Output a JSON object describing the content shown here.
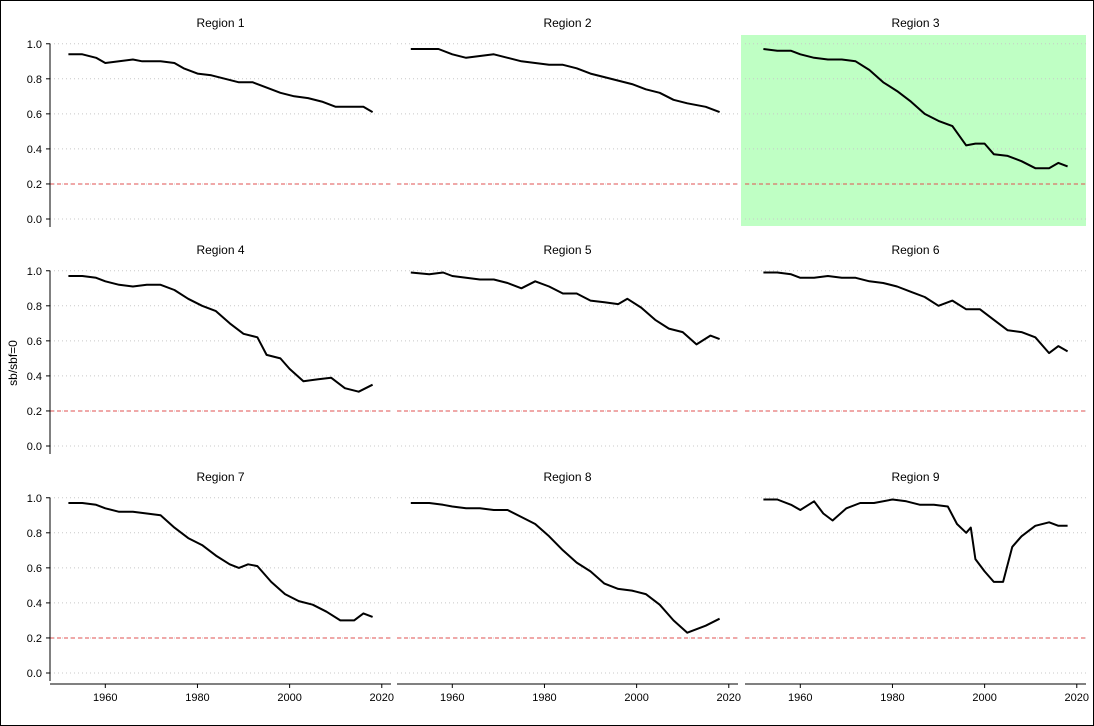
{
  "ylabel": "sb/sbf=0",
  "colors": {
    "line": "#000000",
    "reference": "#e05050",
    "gridline": "#c8c8c8",
    "highlight": "#bfffc4"
  },
  "chart_data": {
    "type": "line",
    "layout": "faceted-3x3",
    "ylabel": "sb/sbf=0",
    "xlabel": "",
    "xlim": [
      1948,
      2022
    ],
    "ylim": [
      -0.04,
      1.05
    ],
    "x_ticks": [
      1960,
      1980,
      2000,
      2020
    ],
    "y_ticks": [
      0.0,
      0.2,
      0.4,
      0.6,
      0.8,
      1.0
    ],
    "y_tick_labels": [
      "0.0",
      "0.2",
      "0.4",
      "0.6",
      "0.8",
      "1.0"
    ],
    "reference_line": {
      "y": 0.2,
      "style": "dashed"
    },
    "grid": "horizontal dotted",
    "highlighted_panel": "Region 3",
    "panels": [
      {
        "title": "Region 1",
        "x": [
          1952,
          1955,
          1958,
          1960,
          1963,
          1966,
          1968,
          1972,
          1975,
          1977,
          1980,
          1983,
          1986,
          1989,
          1992,
          1995,
          1998,
          2001,
          2004,
          2007,
          2010,
          2013,
          2016,
          2018
        ],
        "values": [
          0.94,
          0.94,
          0.92,
          0.89,
          0.9,
          0.91,
          0.9,
          0.9,
          0.89,
          0.86,
          0.83,
          0.82,
          0.8,
          0.78,
          0.78,
          0.75,
          0.72,
          0.7,
          0.69,
          0.67,
          0.64,
          0.64,
          0.64,
          0.61
        ]
      },
      {
        "title": "Region 2",
        "x": [
          1951,
          1955,
          1957,
          1960,
          1963,
          1966,
          1969,
          1972,
          1975,
          1978,
          1981,
          1984,
          1987,
          1990,
          1993,
          1996,
          1999,
          2002,
          2005,
          2008,
          2011,
          2015,
          2018
        ],
        "values": [
          0.97,
          0.97,
          0.97,
          0.94,
          0.92,
          0.93,
          0.94,
          0.92,
          0.9,
          0.89,
          0.88,
          0.88,
          0.86,
          0.83,
          0.81,
          0.79,
          0.77,
          0.74,
          0.72,
          0.68,
          0.66,
          0.64,
          0.61
        ]
      },
      {
        "title": "Region 3",
        "x": [
          1952,
          1955,
          1958,
          1960,
          1963,
          1966,
          1969,
          1972,
          1975,
          1978,
          1981,
          1984,
          1987,
          1990,
          1993,
          1996,
          1998,
          2000,
          2002,
          2005,
          2008,
          2011,
          2014,
          2016,
          2018
        ],
        "values": [
          0.97,
          0.96,
          0.96,
          0.94,
          0.92,
          0.91,
          0.91,
          0.9,
          0.85,
          0.78,
          0.73,
          0.67,
          0.6,
          0.56,
          0.53,
          0.42,
          0.43,
          0.43,
          0.37,
          0.36,
          0.33,
          0.29,
          0.29,
          0.32,
          0.3
        ]
      },
      {
        "title": "Region 4",
        "x": [
          1952,
          1955,
          1958,
          1960,
          1963,
          1966,
          1969,
          1972,
          1975,
          1978,
          1981,
          1984,
          1987,
          1990,
          1993,
          1995,
          1998,
          2000,
          2003,
          2006,
          2009,
          2012,
          2015,
          2018
        ],
        "values": [
          0.97,
          0.97,
          0.96,
          0.94,
          0.92,
          0.91,
          0.92,
          0.92,
          0.89,
          0.84,
          0.8,
          0.77,
          0.7,
          0.64,
          0.62,
          0.52,
          0.5,
          0.44,
          0.37,
          0.38,
          0.39,
          0.33,
          0.31,
          0.35
        ]
      },
      {
        "title": "Region 5",
        "x": [
          1951,
          1955,
          1958,
          1960,
          1963,
          1966,
          1969,
          1972,
          1975,
          1978,
          1981,
          1984,
          1987,
          1990,
          1993,
          1996,
          1998,
          2001,
          2004,
          2007,
          2010,
          2013,
          2016,
          2018
        ],
        "values": [
          0.99,
          0.98,
          0.99,
          0.97,
          0.96,
          0.95,
          0.95,
          0.93,
          0.9,
          0.94,
          0.91,
          0.87,
          0.87,
          0.83,
          0.82,
          0.81,
          0.84,
          0.79,
          0.72,
          0.67,
          0.65,
          0.58,
          0.63,
          0.61
        ]
      },
      {
        "title": "Region 6",
        "x": [
          1952,
          1955,
          1958,
          1960,
          1963,
          1966,
          1969,
          1972,
          1975,
          1978,
          1981,
          1984,
          1987,
          1990,
          1993,
          1996,
          1999,
          2002,
          2005,
          2008,
          2011,
          2014,
          2016,
          2018
        ],
        "values": [
          0.99,
          0.99,
          0.98,
          0.96,
          0.96,
          0.97,
          0.96,
          0.96,
          0.94,
          0.93,
          0.91,
          0.88,
          0.85,
          0.8,
          0.83,
          0.78,
          0.78,
          0.72,
          0.66,
          0.65,
          0.62,
          0.53,
          0.57,
          0.54
        ]
      },
      {
        "title": "Region 7",
        "x": [
          1952,
          1955,
          1958,
          1960,
          1963,
          1966,
          1969,
          1972,
          1975,
          1978,
          1981,
          1984,
          1987,
          1989,
          1991,
          1993,
          1996,
          1999,
          2002,
          2005,
          2008,
          2011,
          2014,
          2016,
          2018
        ],
        "values": [
          0.97,
          0.97,
          0.96,
          0.94,
          0.92,
          0.92,
          0.91,
          0.9,
          0.83,
          0.77,
          0.73,
          0.67,
          0.62,
          0.6,
          0.62,
          0.61,
          0.52,
          0.45,
          0.41,
          0.39,
          0.35,
          0.3,
          0.3,
          0.34,
          0.32
        ]
      },
      {
        "title": "Region 8",
        "x": [
          1951,
          1955,
          1958,
          1960,
          1963,
          1966,
          1969,
          1972,
          1975,
          1978,
          1981,
          1984,
          1987,
          1990,
          1993,
          1996,
          1999,
          2002,
          2005,
          2008,
          2011,
          2013,
          2015,
          2018
        ],
        "values": [
          0.97,
          0.97,
          0.96,
          0.95,
          0.94,
          0.94,
          0.93,
          0.93,
          0.89,
          0.85,
          0.78,
          0.7,
          0.63,
          0.58,
          0.51,
          0.48,
          0.47,
          0.45,
          0.39,
          0.3,
          0.23,
          0.25,
          0.27,
          0.31
        ]
      },
      {
        "title": "Region 9",
        "x": [
          1952,
          1955,
          1958,
          1960,
          1963,
          1965,
          1967,
          1970,
          1973,
          1976,
          1980,
          1983,
          1986,
          1989,
          1992,
          1994,
          1996,
          1997,
          1998,
          2000,
          2002,
          2004,
          2006,
          2008,
          2011,
          2014,
          2016,
          2018
        ],
        "values": [
          0.99,
          0.99,
          0.96,
          0.93,
          0.98,
          0.91,
          0.87,
          0.94,
          0.97,
          0.97,
          0.99,
          0.98,
          0.96,
          0.96,
          0.95,
          0.85,
          0.8,
          0.83,
          0.65,
          0.58,
          0.52,
          0.52,
          0.72,
          0.78,
          0.84,
          0.86,
          0.84,
          0.84
        ]
      }
    ]
  }
}
